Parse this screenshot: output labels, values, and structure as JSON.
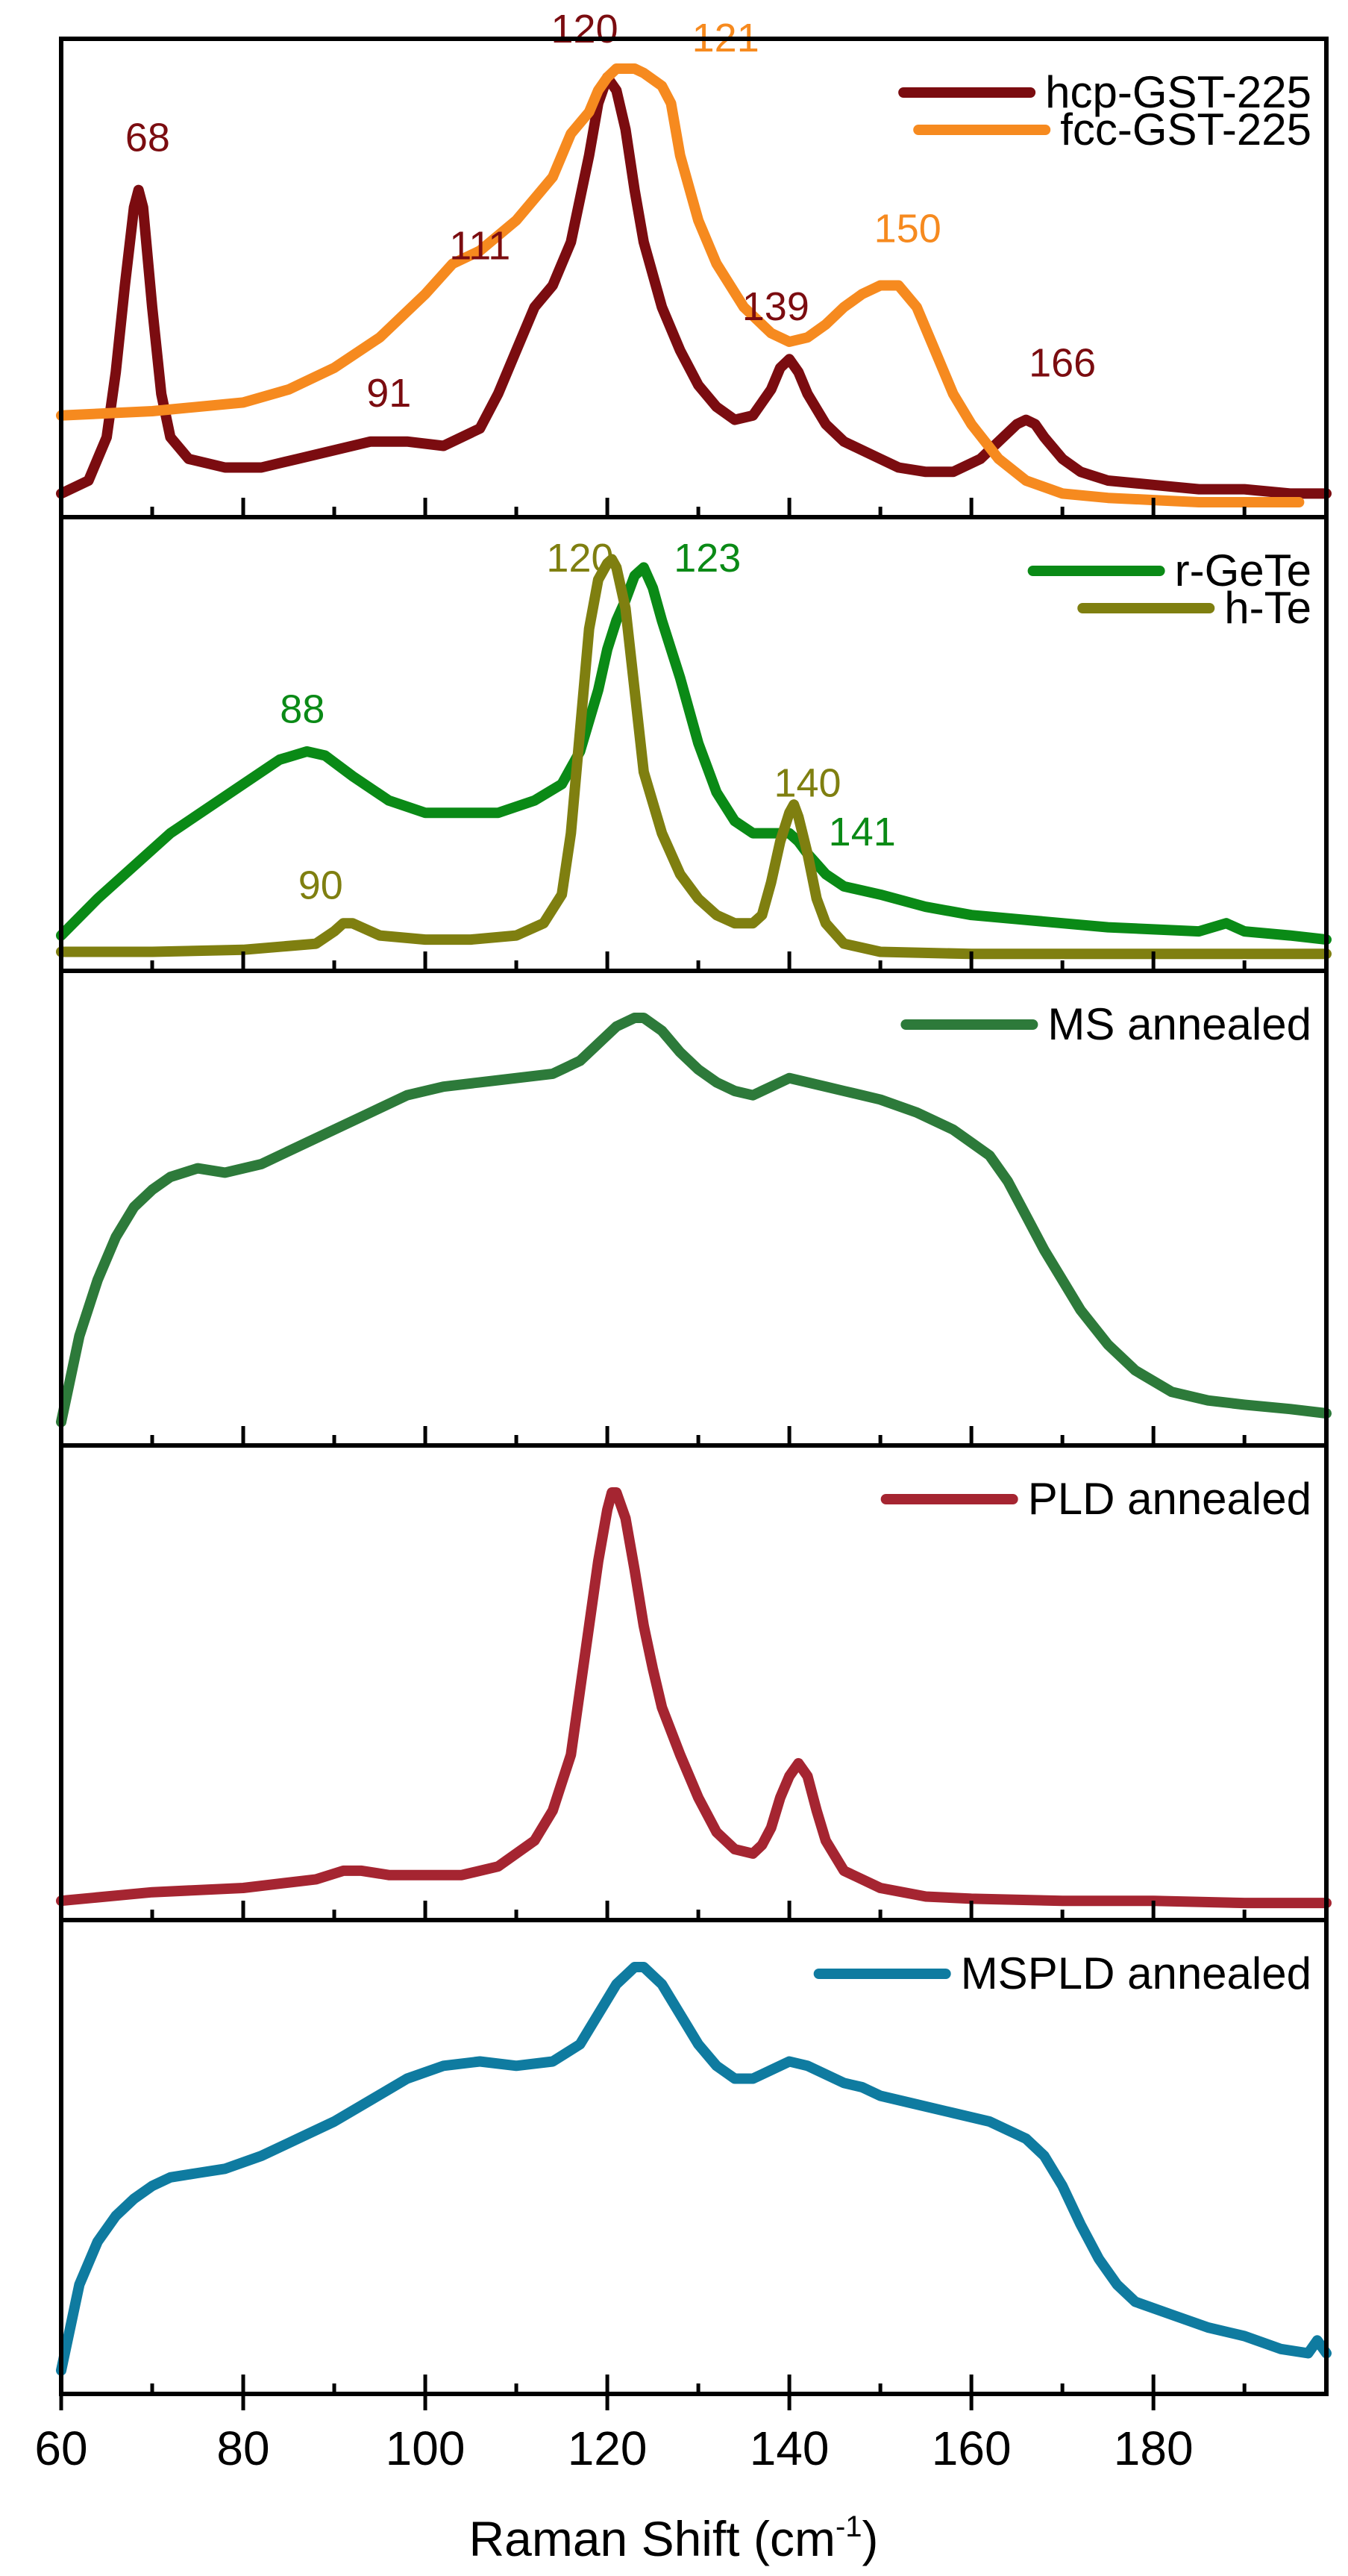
{
  "chart_data": {
    "type": "line",
    "xlabel": "Raman Shift (cm",
    "xlabel_sup": "-1",
    "xlabel_close": ")",
    "xlim": [
      60,
      199
    ],
    "xticks": [
      60,
      80,
      100,
      120,
      140,
      160,
      180
    ],
    "ylabel": "",
    "panels": [
      {
        "series": [
          {
            "name": "hcp-GST-225",
            "color": "#7b0c10",
            "x": [
              60,
              63,
              65,
              66,
              67,
              68,
              68.5,
              69,
              70,
              71,
              72,
              74,
              78,
              82,
              86,
              90,
              94,
              98,
              102,
              106,
              108,
              110,
              112,
              114,
              116,
              118,
              119,
              120,
              121,
              122,
              123,
              124,
              126,
              128,
              130,
              132,
              134,
              136,
              138,
              139,
              140,
              141,
              142,
              144,
              146,
              148,
              150,
              152,
              155,
              158,
              161,
              163,
              165,
              166,
              167,
              168,
              170,
              172,
              175,
              180,
              185,
              190,
              195,
              199
            ],
            "y": [
              0.02,
              0.05,
              0.15,
              0.3,
              0.5,
              0.68,
              0.72,
              0.68,
              0.45,
              0.25,
              0.15,
              0.1,
              0.08,
              0.08,
              0.1,
              0.12,
              0.14,
              0.14,
              0.13,
              0.17,
              0.25,
              0.35,
              0.45,
              0.5,
              0.6,
              0.8,
              0.92,
              0.98,
              0.95,
              0.86,
              0.72,
              0.6,
              0.45,
              0.35,
              0.27,
              0.22,
              0.19,
              0.2,
              0.26,
              0.31,
              0.33,
              0.3,
              0.25,
              0.18,
              0.14,
              0.12,
              0.1,
              0.08,
              0.07,
              0.07,
              0.1,
              0.14,
              0.18,
              0.19,
              0.18,
              0.15,
              0.1,
              0.07,
              0.05,
              0.04,
              0.03,
              0.03,
              0.02,
              0.02
            ]
          },
          {
            "name": "fcc-GST-225",
            "color": "#f68a1f",
            "x": [
              60,
              70,
              80,
              85,
              90,
              95,
              100,
              103,
              106,
              110,
              114,
              116,
              118,
              119,
              120,
              121,
              122,
              123,
              124,
              126,
              127,
              128,
              130,
              132,
              135,
              138,
              140,
              142,
              144,
              146,
              148,
              150,
              152,
              154,
              156,
              158,
              160,
              163,
              166,
              170,
              175,
              180,
              185,
              190,
              195,
              196
            ],
            "y": [
              0.2,
              0.21,
              0.23,
              0.26,
              0.31,
              0.38,
              0.48,
              0.55,
              0.58,
              0.65,
              0.75,
              0.85,
              0.9,
              0.95,
              0.98,
              1.0,
              1.0,
              1.0,
              0.99,
              0.96,
              0.92,
              0.8,
              0.65,
              0.55,
              0.45,
              0.39,
              0.37,
              0.38,
              0.41,
              0.45,
              0.48,
              0.5,
              0.5,
              0.45,
              0.35,
              0.25,
              0.18,
              0.1,
              0.05,
              0.02,
              0.01,
              0.005,
              0,
              0,
              0,
              0
            ]
          }
        ],
        "annotations": [
          {
            "text": "68",
            "x": 69.5,
            "y": 0.81,
            "color": "#7b0c10"
          },
          {
            "text": "91",
            "x": 96,
            "y": 0.22,
            "color": "#7b0c10"
          },
          {
            "text": "111",
            "x": 106,
            "y": 0.56,
            "color": "#7b0c10"
          },
          {
            "text": "120",
            "x": 117.5,
            "y": 1.06,
            "color": "#7b0c10"
          },
          {
            "text": "121",
            "x": 133,
            "y": 1.04,
            "color": "#f68a1f"
          },
          {
            "text": "139",
            "x": 138.5,
            "y": 0.42,
            "color": "#7b0c10"
          },
          {
            "text": "150",
            "x": 153,
            "y": 0.6,
            "color": "#f68a1f"
          },
          {
            "text": "166",
            "x": 170,
            "y": 0.29,
            "color": "#7b0c10"
          }
        ]
      },
      {
        "series": [
          {
            "name": "r-GeTe",
            "color": "#0a8a16",
            "x": [
              60,
              64,
              68,
              72,
              76,
              80,
              84,
              87,
              89,
              92,
              96,
              100,
              104,
              108,
              112,
              115,
              117,
              119,
              120,
              121,
              122,
              123,
              124,
              125,
              126,
              128,
              130,
              132,
              134,
              136,
              138,
              140,
              141,
              142,
              144,
              146,
              150,
              155,
              160,
              165,
              170,
              175,
              180,
              185,
              188,
              190,
              195,
              199
            ],
            "y": [
              0.05,
              0.14,
              0.22,
              0.3,
              0.36,
              0.42,
              0.48,
              0.5,
              0.49,
              0.44,
              0.38,
              0.35,
              0.35,
              0.35,
              0.38,
              0.42,
              0.5,
              0.65,
              0.75,
              0.82,
              0.87,
              0.93,
              0.95,
              0.9,
              0.82,
              0.68,
              0.52,
              0.4,
              0.33,
              0.3,
              0.3,
              0.3,
              0.28,
              0.25,
              0.2,
              0.17,
              0.15,
              0.12,
              0.1,
              0.09,
              0.08,
              0.07,
              0.065,
              0.06,
              0.08,
              0.06,
              0.05,
              0.04
            ]
          },
          {
            "name": "h-Te",
            "color": "#7f7f10",
            "x": [
              60,
              70,
              80,
              88,
              90,
              91,
              92,
              93,
              95,
              100,
              105,
              110,
              113,
              115,
              116,
              117,
              118,
              119,
              120,
              120.5,
              121,
              122,
              123,
              124,
              126,
              128,
              130,
              132,
              134,
              136,
              137,
              138,
              139,
              140,
              140.5,
              141,
              142,
              143,
              144,
              146,
              150,
              160,
              170,
              180,
              190,
              199
            ],
            "y": [
              0.01,
              0.01,
              0.015,
              0.03,
              0.06,
              0.08,
              0.08,
              0.07,
              0.05,
              0.04,
              0.04,
              0.05,
              0.08,
              0.15,
              0.3,
              0.55,
              0.8,
              0.92,
              0.96,
              0.97,
              0.95,
              0.85,
              0.65,
              0.45,
              0.3,
              0.2,
              0.14,
              0.1,
              0.08,
              0.08,
              0.1,
              0.18,
              0.28,
              0.35,
              0.37,
              0.34,
              0.25,
              0.14,
              0.08,
              0.03,
              0.01,
              0.005,
              0.005,
              0.005,
              0.005,
              0.005
            ]
          }
        ],
        "annotations": [
          {
            "text": "120",
            "x": 117,
            "y": 0.94,
            "color": "#7f7f10"
          },
          {
            "text": "123",
            "x": 131,
            "y": 0.94,
            "color": "#0a8a16"
          },
          {
            "text": "88",
            "x": 86.5,
            "y": 0.57,
            "color": "#0a8a16"
          },
          {
            "text": "90",
            "x": 88.5,
            "y": 0.14,
            "color": "#7f7f10"
          },
          {
            "text": "140",
            "x": 142,
            "y": 0.39,
            "color": "#7f7f10"
          },
          {
            "text": "141",
            "x": 148,
            "y": 0.27,
            "color": "#0a8a16"
          }
        ]
      },
      {
        "series": [
          {
            "name": "MS annealed",
            "color": "#2d7a3a",
            "x": [
              60,
              62,
              64,
              66,
              68,
              70,
              72,
              75,
              78,
              82,
              86,
              90,
              94,
              98,
              102,
              106,
              110,
              114,
              117,
              119,
              121,
              123,
              124,
              126,
              128,
              130,
              132,
              134,
              136,
              138,
              140,
              142,
              144,
              146,
              148,
              150,
              154,
              158,
              162,
              164,
              166,
              168,
              170,
              172,
              175,
              178,
              182,
              186,
              190,
              195,
              199
            ],
            "y": [
              0.02,
              0.22,
              0.35,
              0.45,
              0.52,
              0.56,
              0.59,
              0.61,
              0.6,
              0.62,
              0.66,
              0.7,
              0.74,
              0.78,
              0.8,
              0.81,
              0.82,
              0.83,
              0.86,
              0.9,
              0.94,
              0.96,
              0.96,
              0.93,
              0.88,
              0.84,
              0.81,
              0.79,
              0.78,
              0.8,
              0.82,
              0.81,
              0.8,
              0.79,
              0.78,
              0.77,
              0.74,
              0.7,
              0.64,
              0.58,
              0.5,
              0.42,
              0.35,
              0.28,
              0.2,
              0.14,
              0.09,
              0.07,
              0.06,
              0.05,
              0.04
            ]
          }
        ],
        "annotations": []
      },
      {
        "series": [
          {
            "name": "PLD annealed",
            "color": "#a52531",
            "x": [
              60,
              70,
              80,
              88,
              91,
              93,
              96,
              100,
              104,
              108,
              112,
              114,
              116,
              117,
              118,
              119,
              120,
              120.5,
              121,
              122,
              123,
              124,
              125,
              126,
              128,
              130,
              132,
              134,
              136,
              137,
              138,
              139,
              140,
              141,
              142,
              143,
              144,
              146,
              150,
              155,
              160,
              170,
              180,
              190,
              199
            ],
            "y": [
              0.01,
              0.03,
              0.04,
              0.06,
              0.08,
              0.08,
              0.07,
              0.07,
              0.07,
              0.09,
              0.15,
              0.22,
              0.35,
              0.5,
              0.65,
              0.8,
              0.92,
              0.96,
              0.96,
              0.9,
              0.78,
              0.65,
              0.55,
              0.46,
              0.35,
              0.25,
              0.17,
              0.13,
              0.12,
              0.14,
              0.18,
              0.25,
              0.3,
              0.33,
              0.3,
              0.22,
              0.15,
              0.08,
              0.04,
              0.02,
              0.015,
              0.01,
              0.01,
              0.005,
              0.005
            ]
          }
        ],
        "annotations": []
      },
      {
        "series": [
          {
            "name": "MSPLD annealed",
            "color": "#0f7ba0",
            "x": [
              60,
              62,
              64,
              66,
              68,
              70,
              72,
              75,
              78,
              82,
              86,
              90,
              94,
              98,
              102,
              106,
              110,
              114,
              117,
              119,
              121,
              123,
              124,
              126,
              128,
              130,
              132,
              134,
              136,
              138,
              140,
              142,
              144,
              146,
              148,
              150,
              154,
              158,
              162,
              166,
              168,
              170,
              172,
              174,
              176,
              178,
              182,
              186,
              190,
              194,
              197,
              198,
              199
            ],
            "y": [
              0.02,
              0.22,
              0.32,
              0.38,
              0.42,
              0.45,
              0.47,
              0.48,
              0.49,
              0.52,
              0.56,
              0.6,
              0.65,
              0.7,
              0.73,
              0.74,
              0.73,
              0.74,
              0.78,
              0.85,
              0.92,
              0.96,
              0.96,
              0.92,
              0.85,
              0.78,
              0.73,
              0.7,
              0.7,
              0.72,
              0.74,
              0.73,
              0.71,
              0.69,
              0.68,
              0.66,
              0.64,
              0.62,
              0.6,
              0.56,
              0.52,
              0.45,
              0.36,
              0.28,
              0.22,
              0.18,
              0.15,
              0.12,
              0.1,
              0.07,
              0.06,
              0.09,
              0.06
            ]
          }
        ],
        "annotations": []
      }
    ]
  }
}
